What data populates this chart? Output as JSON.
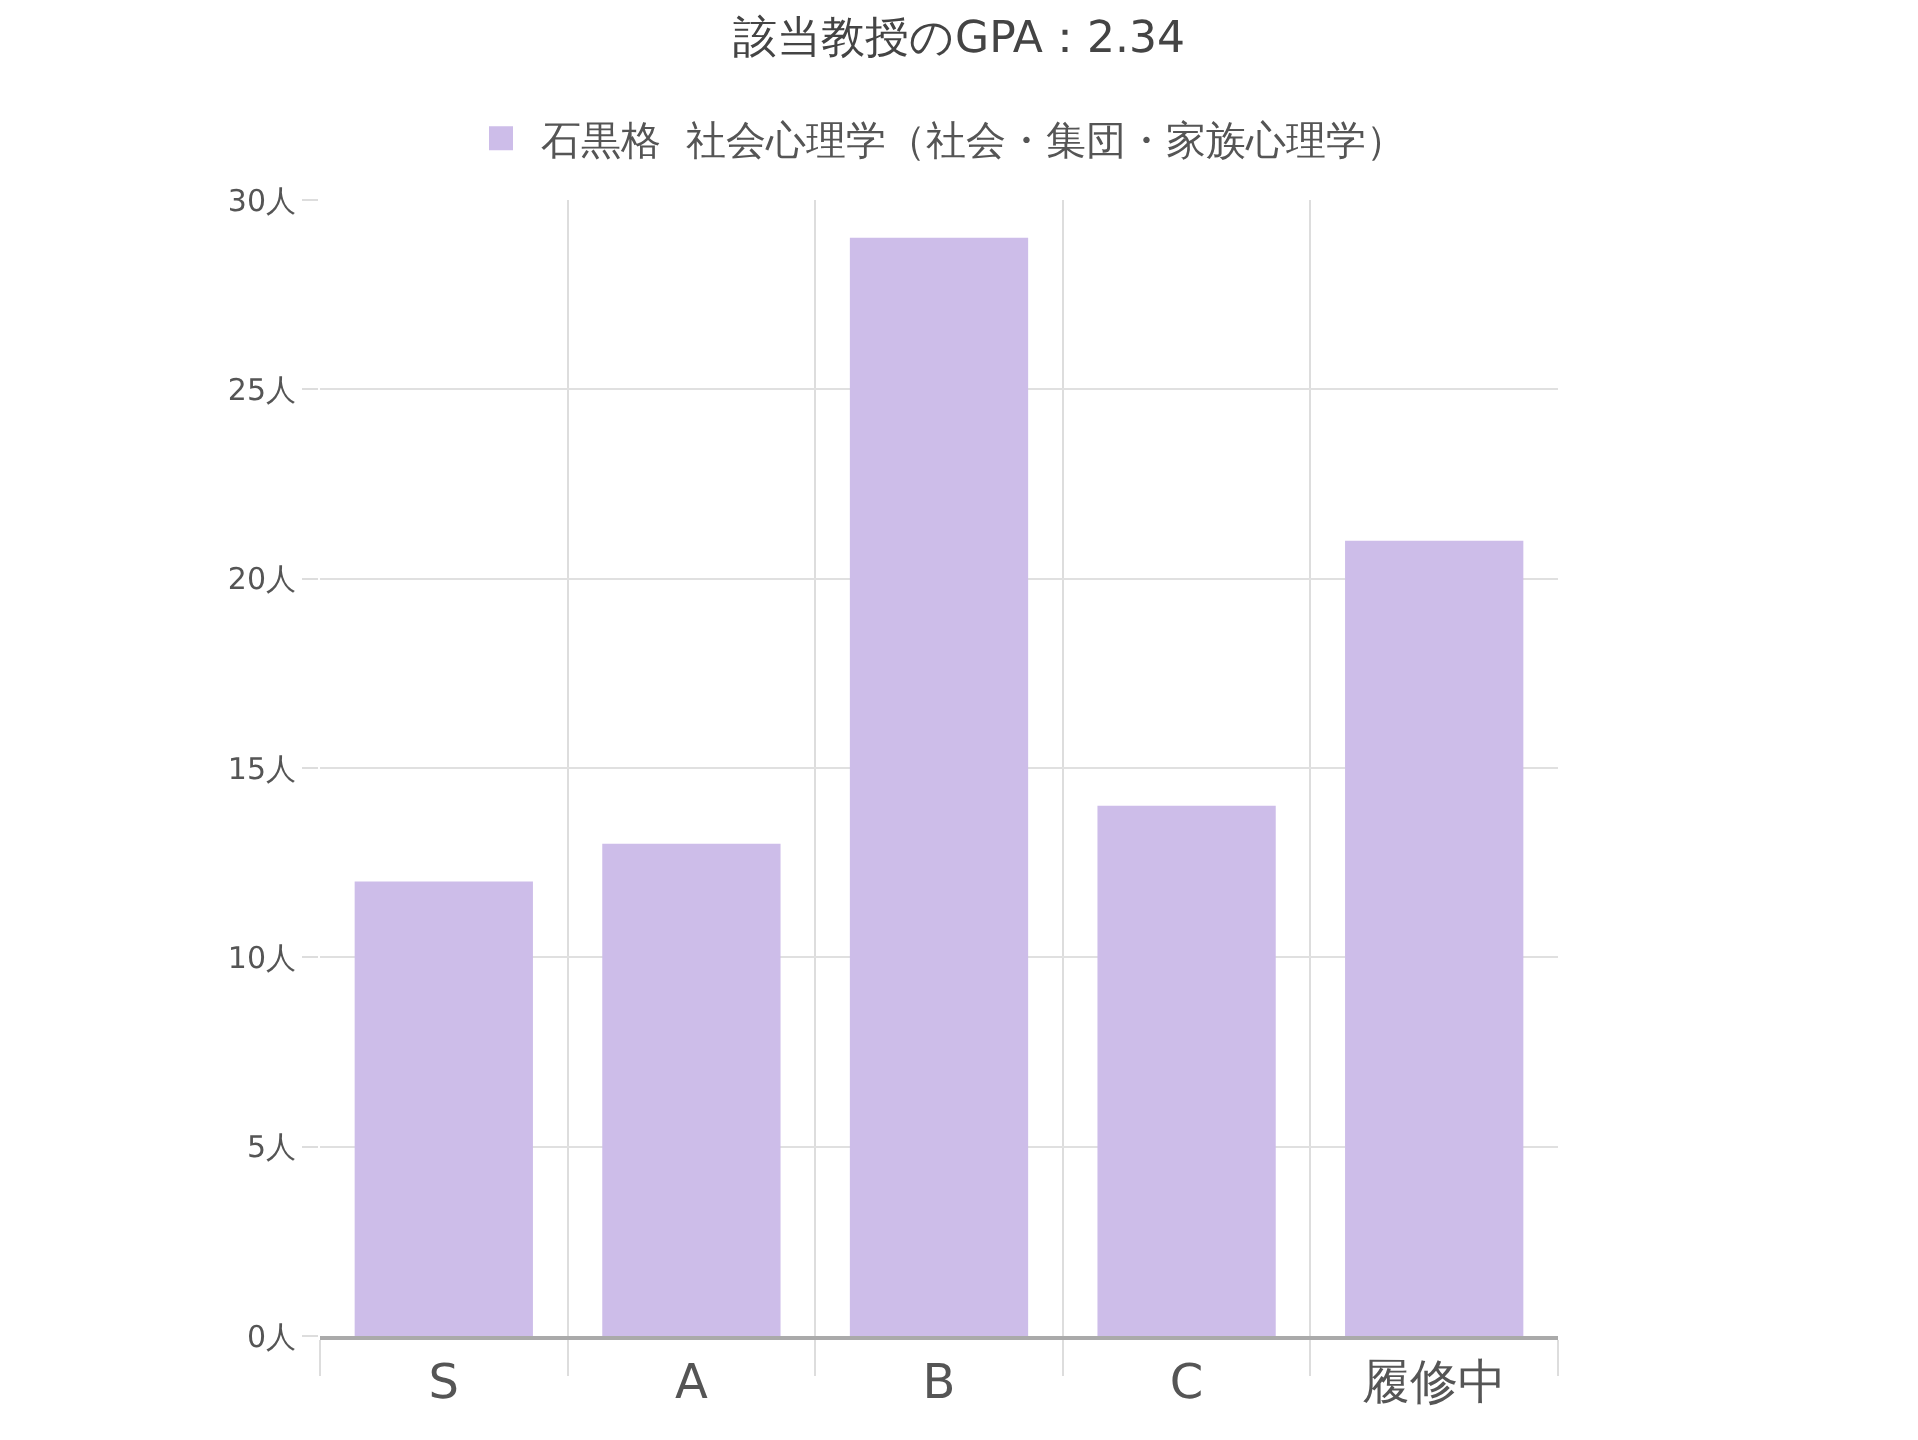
{
  "chart_data": {
    "type": "bar",
    "title": "該当教授のGPA：2.34",
    "categories": [
      "S",
      "A",
      "B",
      "C",
      "履修中"
    ],
    "series": [
      {
        "name": "石黒格  社会心理学（社会・集団・家族心理学）",
        "color": "#cdbde9",
        "values": [
          12,
          13,
          29,
          14,
          21
        ]
      }
    ],
    "ylim": [
      0,
      30
    ],
    "yticks": [
      {
        "value": 0,
        "label": "0人"
      },
      {
        "value": 5,
        "label": "5人"
      },
      {
        "value": 10,
        "label": "10人"
      },
      {
        "value": 15,
        "label": "15人"
      },
      {
        "value": 20,
        "label": "20人"
      },
      {
        "value": 25,
        "label": "25人"
      },
      {
        "value": 30,
        "label": "30人"
      }
    ],
    "grid": true,
    "legend": "top"
  }
}
